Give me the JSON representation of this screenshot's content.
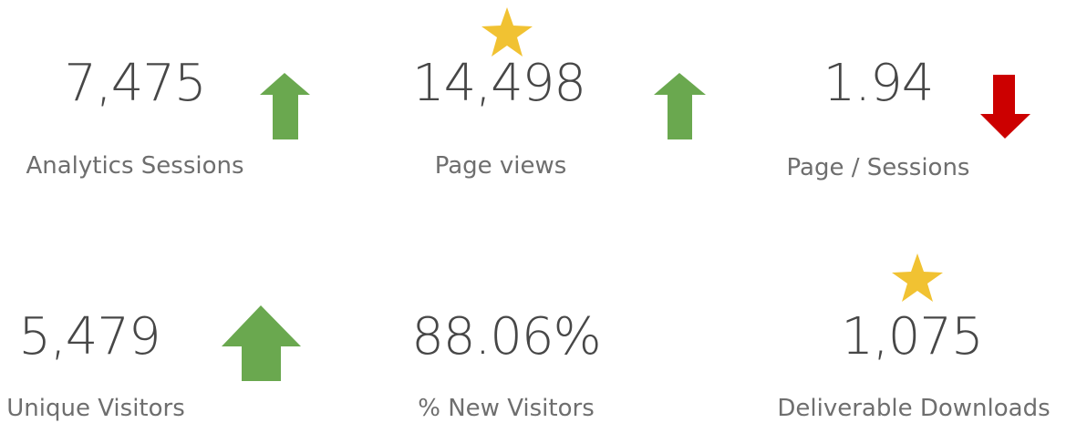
{
  "metrics": [
    {
      "value": "7,475",
      "label": "Analytics Sessions"
    },
    {
      "value": "14,498",
      "label": "Page views"
    },
    {
      "value": "1.94",
      "label": "Page / Sessions"
    },
    {
      "value": "5,479",
      "label": "Unique Visitors"
    },
    {
      "value": "88.06%",
      "label": "% New Visitors"
    },
    {
      "value": "1,075",
      "label": "Deliverable Downloads"
    }
  ]
}
